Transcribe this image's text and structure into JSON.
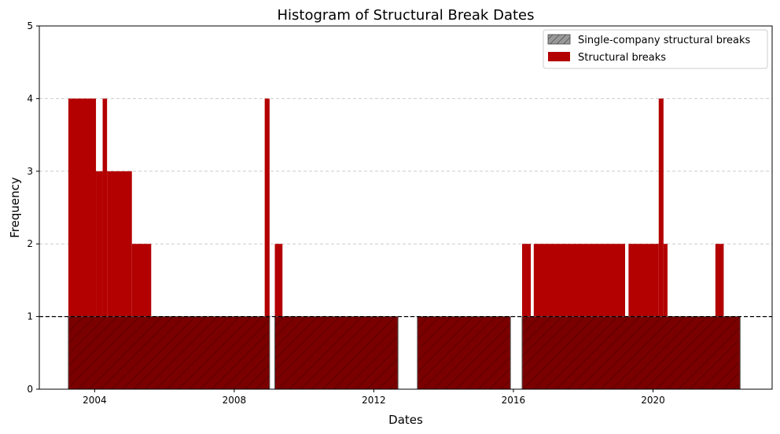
{
  "chart_data": {
    "type": "bar",
    "title": "Histogram of Structural Break Dates",
    "xlabel": "Dates",
    "ylabel": "Frequency",
    "xlim": [
      "2002-06-01",
      "2023-06-01"
    ],
    "ylim": [
      0,
      5
    ],
    "x_ticks": [
      "2004",
      "2008",
      "2012",
      "2016",
      "2020"
    ],
    "y_ticks": [
      "0",
      "1",
      "2",
      "3",
      "4",
      "5"
    ],
    "grid": "horizontal dashed",
    "legend_position": "top-right",
    "reference_line": {
      "y": 1,
      "style": "dashed",
      "color": "#000000"
    },
    "series": [
      {
        "name": "Single-company structural breaks",
        "color": "#7a0000",
        "hatch": "diagonal",
        "bars": [
          {
            "start": "2003-04-01",
            "end": "2009-01-05",
            "value": 1
          },
          {
            "start": "2009-03-01",
            "end": "2012-09-10",
            "value": 1
          },
          {
            "start": "2013-04-01",
            "end": "2015-12-01",
            "value": 1
          },
          {
            "start": "2016-04-01",
            "end": "2022-07-01",
            "value": 1
          }
        ]
      },
      {
        "name": "Structural breaks",
        "color": "#b30000",
        "bars": [
          {
            "start": "2003-04-01",
            "end": "2004-01-15",
            "value": 4
          },
          {
            "start": "2004-01-15",
            "end": "2004-03-25",
            "value": 3
          },
          {
            "start": "2004-03-25",
            "end": "2004-05-10",
            "value": 4
          },
          {
            "start": "2004-05-10",
            "end": "2005-01-25",
            "value": 3
          },
          {
            "start": "2005-01-25",
            "end": "2005-08-15",
            "value": 2
          },
          {
            "start": "2008-11-15",
            "end": "2009-01-05",
            "value": 4
          },
          {
            "start": "2009-03-01",
            "end": "2009-05-20",
            "value": 2
          },
          {
            "start": "2016-04-01",
            "end": "2016-07-01",
            "value": 2
          },
          {
            "start": "2016-08-01",
            "end": "2019-03-15",
            "value": 2
          },
          {
            "start": "2019-04-20",
            "end": "2020-03-01",
            "value": 2
          },
          {
            "start": "2020-03-01",
            "end": "2020-04-20",
            "value": 4
          },
          {
            "start": "2020-04-20",
            "end": "2020-06-01",
            "value": 2
          },
          {
            "start": "2021-10-15",
            "end": "2022-01-10",
            "value": 2
          }
        ]
      }
    ]
  }
}
